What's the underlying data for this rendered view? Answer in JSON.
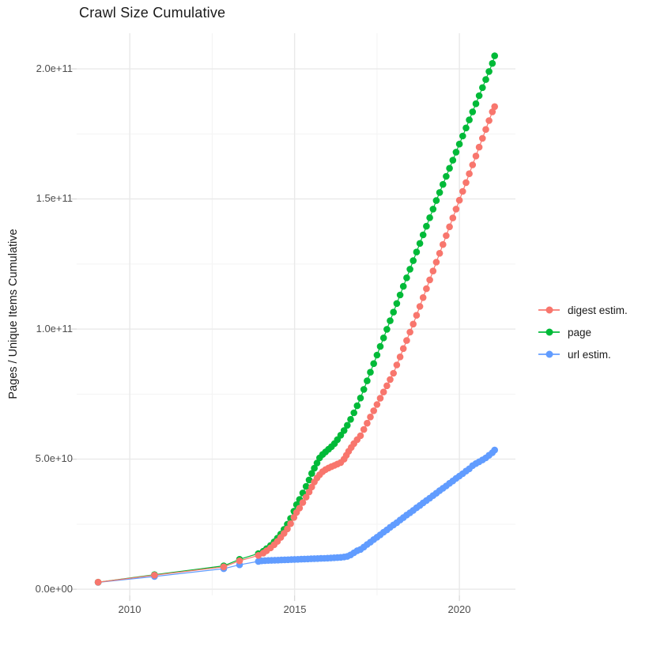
{
  "title": "Crawl Size Cumulative",
  "axes": {
    "y_title": "Pages / Unique Items Cumulative",
    "x_title": ""
  },
  "legend": {
    "items": [
      {
        "label": "digest estim.",
        "color": "#F8766D"
      },
      {
        "label": "page",
        "color": "#00BA38"
      },
      {
        "label": "url estim.",
        "color": "#619CFF"
      }
    ]
  },
  "chart_data": {
    "type": "line",
    "title": "Crawl Size Cumulative",
    "xlabel": "",
    "ylabel": "Pages / Unique Items Cumulative",
    "x_unit": "year (decimal)",
    "y_value_unit_multiplier": 1000000000,
    "xlim": [
      2008.39,
      2021.7
    ],
    "ylim_e9": [
      -2.4,
      213.7
    ],
    "grid": true,
    "legend_position": "right",
    "x_ticks": {
      "major": [
        2010,
        2015,
        2020
      ],
      "minor": [
        2012.5,
        2017.5
      ],
      "labels": [
        "2010",
        "2015",
        "2020"
      ]
    },
    "y_ticks": {
      "major_e9": [
        200,
        150,
        100,
        50,
        0
      ],
      "minor_e9": [
        175,
        125,
        75,
        25
      ],
      "labels": [
        "2.0e+11",
        "1.5e+11",
        "1.0e+11",
        "5.0e+10",
        "0.0e+00"
      ]
    },
    "series": [
      {
        "name": "digest estim.",
        "color": "#F8766D",
        "points": [
          [
            2009.04,
            2.7
          ],
          [
            2010.75,
            5.4
          ],
          [
            2012.85,
            8.6
          ],
          [
            2013.33,
            10.9
          ],
          [
            2013.9,
            13.0
          ],
          [
            2014.05,
            13.9
          ],
          [
            2014.15,
            14.8
          ],
          [
            2014.27,
            15.9
          ],
          [
            2014.38,
            17.1
          ],
          [
            2014.48,
            18.4
          ],
          [
            2014.58,
            19.9
          ],
          [
            2014.68,
            21.5
          ],
          [
            2014.78,
            23.2
          ],
          [
            2014.88,
            25.2
          ],
          [
            2014.98,
            27.6
          ],
          [
            2015.06,
            29.5
          ],
          [
            2015.15,
            31.2
          ],
          [
            2015.25,
            33.3
          ],
          [
            2015.35,
            35.4
          ],
          [
            2015.44,
            37.4
          ],
          [
            2015.52,
            39.3
          ],
          [
            2015.6,
            41.2
          ],
          [
            2015.68,
            42.8
          ],
          [
            2015.76,
            44.0
          ],
          [
            2015.85,
            45.2
          ],
          [
            2015.94,
            46.0
          ],
          [
            2016.03,
            46.6
          ],
          [
            2016.12,
            47.1
          ],
          [
            2016.21,
            47.6
          ],
          [
            2016.3,
            48.1
          ],
          [
            2016.4,
            48.7
          ],
          [
            2016.5,
            50.0
          ],
          [
            2016.57,
            51.5
          ],
          [
            2016.64,
            53.0
          ],
          [
            2016.72,
            54.5
          ],
          [
            2016.8,
            56.0
          ],
          [
            2016.9,
            57.5
          ],
          [
            2017.0,
            59.0
          ],
          [
            2017.1,
            61.4
          ],
          [
            2017.2,
            63.8
          ],
          [
            2017.3,
            66.2
          ],
          [
            2017.4,
            68.6
          ],
          [
            2017.5,
            71.0
          ],
          [
            2017.6,
            73.4
          ],
          [
            2017.7,
            75.8
          ],
          [
            2017.8,
            78.2
          ],
          [
            2017.9,
            80.6
          ],
          [
            2018.0,
            83.0
          ],
          [
            2018.1,
            86.2
          ],
          [
            2018.2,
            89.3
          ],
          [
            2018.3,
            92.5
          ],
          [
            2018.4,
            95.6
          ],
          [
            2018.5,
            98.8
          ],
          [
            2018.6,
            101.9
          ],
          [
            2018.7,
            105.3
          ],
          [
            2018.8,
            108.7
          ],
          [
            2018.9,
            112.1
          ],
          [
            2019.0,
            115.5
          ],
          [
            2019.1,
            118.9
          ],
          [
            2019.2,
            122.3
          ],
          [
            2019.3,
            125.7
          ],
          [
            2019.4,
            129.1
          ],
          [
            2019.5,
            132.5
          ],
          [
            2019.6,
            135.9
          ],
          [
            2019.7,
            139.3
          ],
          [
            2019.8,
            142.7
          ],
          [
            2019.9,
            146.1
          ],
          [
            2020.0,
            149.5
          ],
          [
            2020.1,
            152.9
          ],
          [
            2020.2,
            156.3
          ],
          [
            2020.3,
            159.7
          ],
          [
            2020.4,
            163.1
          ],
          [
            2020.5,
            166.5
          ],
          [
            2020.6,
            169.9
          ],
          [
            2020.7,
            173.3
          ],
          [
            2020.8,
            176.7
          ],
          [
            2020.9,
            180.1
          ],
          [
            2021.0,
            183.5
          ],
          [
            2021.07,
            185.5
          ]
        ]
      },
      {
        "name": "page",
        "color": "#00BA38",
        "points": [
          [
            2009.04,
            2.7
          ],
          [
            2010.75,
            5.6
          ],
          [
            2012.85,
            9.0
          ],
          [
            2013.33,
            11.5
          ],
          [
            2013.9,
            13.7
          ],
          [
            2014.05,
            14.6
          ],
          [
            2014.15,
            15.6
          ],
          [
            2014.27,
            16.8
          ],
          [
            2014.38,
            18.2
          ],
          [
            2014.48,
            19.6
          ],
          [
            2014.58,
            21.2
          ],
          [
            2014.68,
            23.0
          ],
          [
            2014.78,
            25.0
          ],
          [
            2014.88,
            27.2
          ],
          [
            2014.98,
            30.0
          ],
          [
            2015.06,
            32.5
          ],
          [
            2015.15,
            34.5
          ],
          [
            2015.25,
            37.0
          ],
          [
            2015.35,
            39.5
          ],
          [
            2015.44,
            42.0
          ],
          [
            2015.52,
            44.5
          ],
          [
            2015.6,
            46.5
          ],
          [
            2015.68,
            48.5
          ],
          [
            2015.76,
            50.5
          ],
          [
            2015.85,
            51.8
          ],
          [
            2015.94,
            52.8
          ],
          [
            2016.03,
            53.8
          ],
          [
            2016.12,
            54.8
          ],
          [
            2016.21,
            56.0
          ],
          [
            2016.3,
            57.5
          ],
          [
            2016.4,
            59.2
          ],
          [
            2016.5,
            61.0
          ],
          [
            2016.6,
            63.0
          ],
          [
            2016.7,
            65.3
          ],
          [
            2016.8,
            67.8
          ],
          [
            2016.9,
            70.5
          ],
          [
            2017.0,
            73.5
          ],
          [
            2017.1,
            76.8
          ],
          [
            2017.2,
            80.1
          ],
          [
            2017.3,
            83.4
          ],
          [
            2017.4,
            86.7
          ],
          [
            2017.5,
            90.0
          ],
          [
            2017.6,
            93.3
          ],
          [
            2017.7,
            96.6
          ],
          [
            2017.8,
            99.9
          ],
          [
            2017.9,
            103.2
          ],
          [
            2018.0,
            106.5
          ],
          [
            2018.1,
            109.8
          ],
          [
            2018.2,
            113.1
          ],
          [
            2018.3,
            116.4
          ],
          [
            2018.4,
            119.7
          ],
          [
            2018.5,
            123.0
          ],
          [
            2018.6,
            126.3
          ],
          [
            2018.7,
            129.6
          ],
          [
            2018.8,
            132.9
          ],
          [
            2018.9,
            136.2
          ],
          [
            2019.0,
            139.5
          ],
          [
            2019.1,
            142.8
          ],
          [
            2019.2,
            146.1
          ],
          [
            2019.3,
            149.4
          ],
          [
            2019.4,
            152.5
          ],
          [
            2019.5,
            155.6
          ],
          [
            2019.6,
            158.7
          ],
          [
            2019.7,
            161.8
          ],
          [
            2019.8,
            164.9
          ],
          [
            2019.9,
            168.0
          ],
          [
            2020.0,
            171.1
          ],
          [
            2020.1,
            174.2
          ],
          [
            2020.2,
            177.3
          ],
          [
            2020.3,
            180.4
          ],
          [
            2020.4,
            183.5
          ],
          [
            2020.5,
            186.6
          ],
          [
            2020.6,
            189.7
          ],
          [
            2020.7,
            192.8
          ],
          [
            2020.8,
            195.9
          ],
          [
            2020.9,
            199.0
          ],
          [
            2021.0,
            202.1
          ],
          [
            2021.07,
            205.0
          ]
        ]
      },
      {
        "name": "url estim.",
        "color": "#619CFF",
        "points": [
          [
            2009.04,
            2.6
          ],
          [
            2010.75,
            4.9
          ],
          [
            2012.85,
            7.9
          ],
          [
            2013.33,
            9.4
          ],
          [
            2013.9,
            10.7
          ],
          [
            2014.0,
            10.9
          ],
          [
            2014.1,
            11.0
          ],
          [
            2014.2,
            11.05
          ],
          [
            2014.3,
            11.1
          ],
          [
            2014.4,
            11.15
          ],
          [
            2014.5,
            11.2
          ],
          [
            2014.6,
            11.25
          ],
          [
            2014.7,
            11.3
          ],
          [
            2014.8,
            11.35
          ],
          [
            2014.9,
            11.4
          ],
          [
            2015.0,
            11.45
          ],
          [
            2015.1,
            11.5
          ],
          [
            2015.2,
            11.55
          ],
          [
            2015.3,
            11.6
          ],
          [
            2015.4,
            11.65
          ],
          [
            2015.5,
            11.7
          ],
          [
            2015.6,
            11.75
          ],
          [
            2015.7,
            11.8
          ],
          [
            2015.8,
            11.85
          ],
          [
            2015.9,
            11.9
          ],
          [
            2016.0,
            11.95
          ],
          [
            2016.1,
            12.0
          ],
          [
            2016.2,
            12.1
          ],
          [
            2016.3,
            12.15
          ],
          [
            2016.4,
            12.25
          ],
          [
            2016.5,
            12.4
          ],
          [
            2016.6,
            12.6
          ],
          [
            2016.7,
            13.2
          ],
          [
            2016.8,
            14.0
          ],
          [
            2016.9,
            14.8
          ],
          [
            2017.0,
            15.3
          ],
          [
            2017.1,
            16.2
          ],
          [
            2017.2,
            17.2
          ],
          [
            2017.3,
            18.1
          ],
          [
            2017.4,
            19.1
          ],
          [
            2017.5,
            20.0
          ],
          [
            2017.6,
            20.9
          ],
          [
            2017.7,
            21.9
          ],
          [
            2017.8,
            22.8
          ],
          [
            2017.9,
            23.8
          ],
          [
            2018.0,
            24.7
          ],
          [
            2018.1,
            25.6
          ],
          [
            2018.2,
            26.6
          ],
          [
            2018.3,
            27.5
          ],
          [
            2018.4,
            28.5
          ],
          [
            2018.5,
            29.4
          ],
          [
            2018.6,
            30.3
          ],
          [
            2018.7,
            31.3
          ],
          [
            2018.8,
            32.2
          ],
          [
            2018.9,
            33.2
          ],
          [
            2019.0,
            34.1
          ],
          [
            2019.1,
            35.0
          ],
          [
            2019.2,
            36.0
          ],
          [
            2019.3,
            36.9
          ],
          [
            2019.4,
            37.9
          ],
          [
            2019.5,
            38.8
          ],
          [
            2019.6,
            39.7
          ],
          [
            2019.7,
            40.7
          ],
          [
            2019.8,
            41.6
          ],
          [
            2019.9,
            42.6
          ],
          [
            2020.0,
            43.5
          ],
          [
            2020.1,
            44.4
          ],
          [
            2020.2,
            45.4
          ],
          [
            2020.3,
            46.3
          ],
          [
            2020.4,
            47.5
          ],
          [
            2020.5,
            48.3
          ],
          [
            2020.6,
            49.0
          ],
          [
            2020.7,
            49.7
          ],
          [
            2020.8,
            50.5
          ],
          [
            2020.9,
            51.5
          ],
          [
            2021.0,
            52.5
          ],
          [
            2021.07,
            53.5
          ]
        ]
      }
    ]
  }
}
